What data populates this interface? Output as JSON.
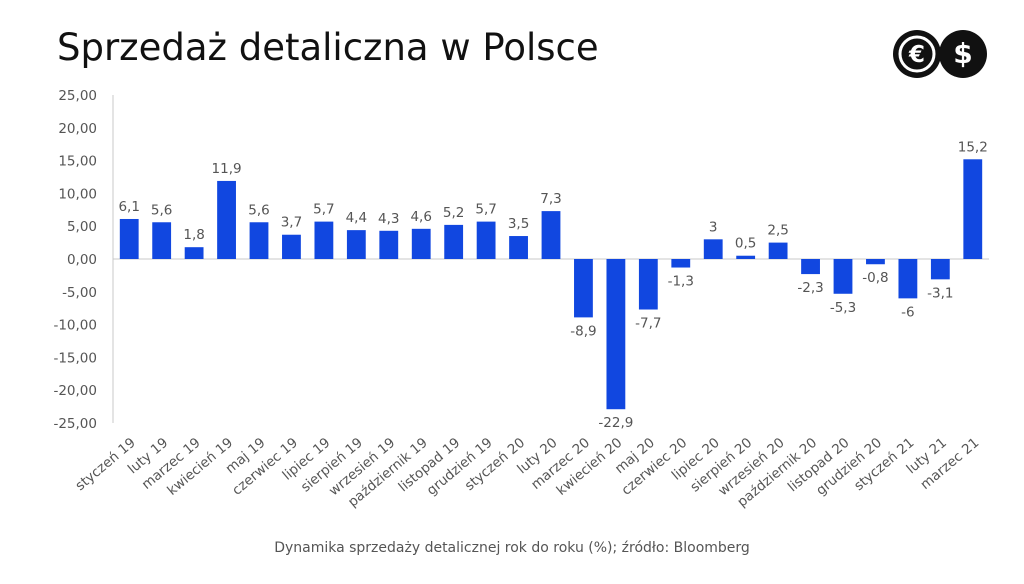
{
  "title": "Sprzedaż detaliczna w Polsce",
  "caption": "Dynamika sprzedaży detalicznej rok do roku (%); źródło: Bloomberg",
  "logo": {
    "icons": [
      "euro-icon",
      "dollar-icon"
    ],
    "glyphs": [
      "€",
      "$"
    ]
  },
  "colors": {
    "bar": "#1147e0",
    "axis": "#c8c8c8",
    "text": "#555555",
    "title": "#111111"
  },
  "chart_data": {
    "type": "bar",
    "title": "Sprzedaż detaliczna w Polsce",
    "xlabel": "",
    "ylabel": "",
    "ylim": [
      -25,
      25
    ],
    "yticks": [
      25,
      20,
      15,
      10,
      5,
      0,
      -5,
      -10,
      -15,
      -20,
      -25
    ],
    "ytick_labels": [
      "25,00",
      "20,00",
      "15,00",
      "10,00",
      "5,00",
      "0,00",
      "-5,00",
      "-10,00",
      "-15,00",
      "-20,00",
      "-25,00"
    ],
    "grid": false,
    "legend": "none",
    "categories": [
      "styczeń 19",
      "luty 19",
      "marzec 19",
      "kwiecień 19",
      "maj 19",
      "czerwiec 19",
      "lipiec 19",
      "sierpień 19",
      "wrzesień 19",
      "październik 19",
      "listopad 19",
      "grudzień 19",
      "styczeń 20",
      "luty 20",
      "marzec 20",
      "kwiecień 20",
      "maj 20",
      "czerwiec 20",
      "lipiec 20",
      "sierpień 20",
      "wrzesień 20",
      "październik 20",
      "listopad 20",
      "grudzień 20",
      "styczeń 21",
      "luty 21",
      "marzec 21"
    ],
    "values": [
      6.1,
      5.6,
      1.8,
      11.9,
      5.6,
      3.7,
      5.7,
      4.4,
      4.3,
      4.6,
      5.2,
      5.7,
      3.5,
      7.3,
      -8.9,
      -22.9,
      -7.7,
      -1.3,
      3,
      0.5,
      2.5,
      -2.3,
      -5.3,
      -0.8,
      -6,
      -3.1,
      15.2
    ],
    "data_labels": [
      "6,1",
      "5,6",
      "1,8",
      "11,9",
      "5,6",
      "3,7",
      "5,7",
      "4,4",
      "4,3",
      "4,6",
      "5,2",
      "5,7",
      "3,5",
      "7,3",
      "-8,9",
      "-22,9",
      "-7,7",
      "-1,3",
      "3",
      "0,5",
      "2,5",
      "-2,3",
      "-5,3",
      "-0,8",
      "-6",
      "-3,1",
      "15,2"
    ]
  }
}
